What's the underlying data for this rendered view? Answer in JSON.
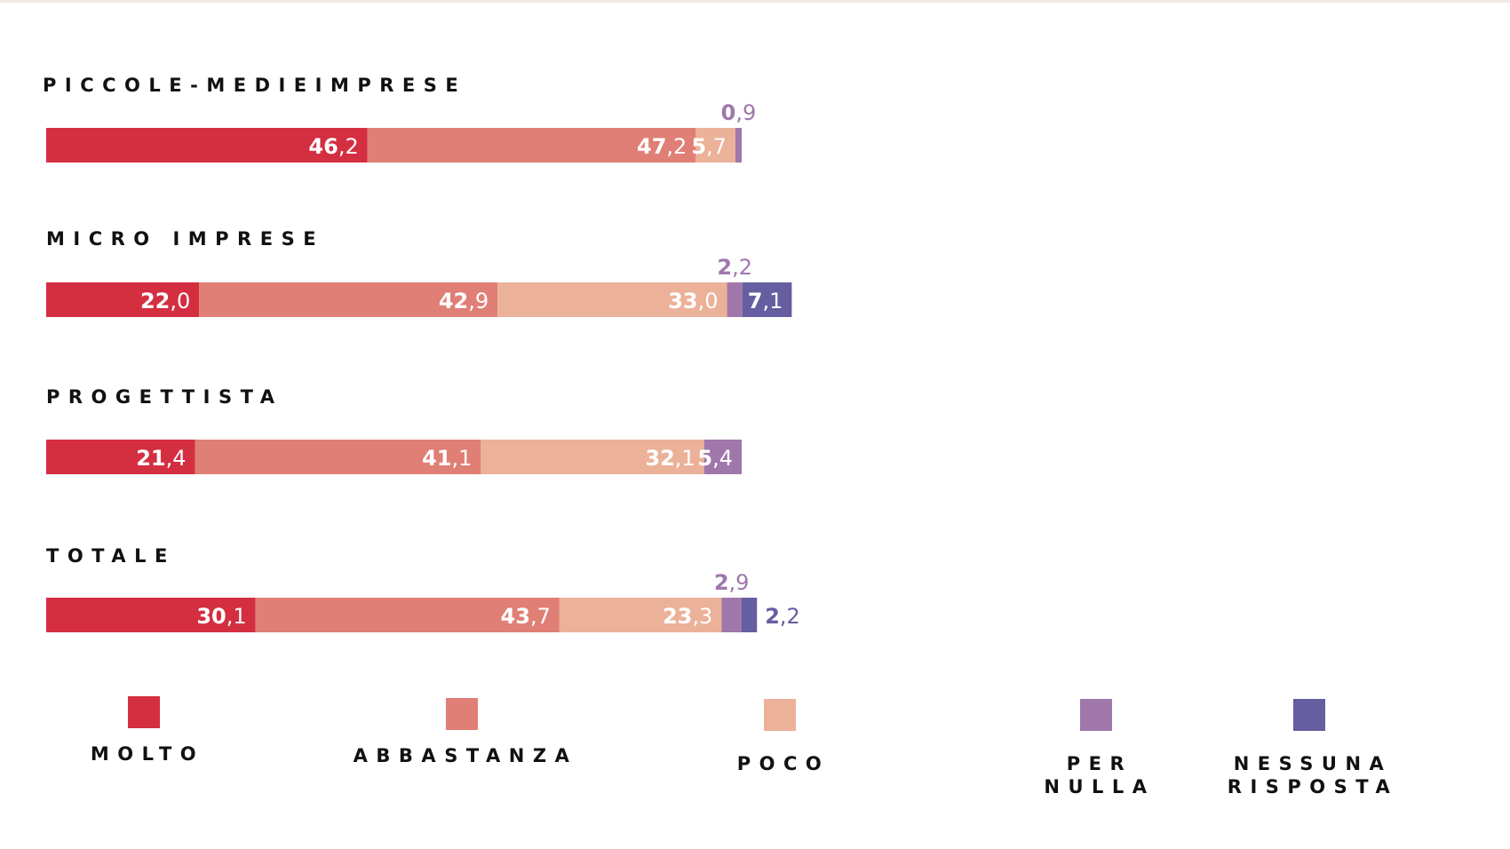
{
  "chart_data": {
    "type": "bar",
    "orientation": "horizontal-stacked",
    "categories": [
      "PICCOLE-MEDIEIMPRESE",
      "MICRO IMPRESE",
      "PROGETTISTA",
      "TOTALE"
    ],
    "series": [
      {
        "name": "MOLTO",
        "color": "#d42e41",
        "values": [
          46.2,
          22.0,
          21.4,
          30.1
        ]
      },
      {
        "name": "ABBASTANZA",
        "color": "#e07f75",
        "values": [
          47.2,
          42.9,
          41.1,
          43.7
        ]
      },
      {
        "name": "POCO",
        "color": "#ecb199",
        "values": [
          5.7,
          33.0,
          32.1,
          23.3
        ]
      },
      {
        "name": "PER NULLA",
        "color": "#9f77aa",
        "values": [
          0.9,
          2.2,
          5.4,
          2.9
        ]
      },
      {
        "name": "NESSUNA RISPOSTA",
        "color": "#655ea0",
        "values": [
          0,
          7.1,
          0,
          2.2
        ]
      }
    ],
    "value_labels": [
      [
        {
          "int": "46",
          "dec": ",2"
        },
        {
          "int": "47",
          "dec": ",2"
        },
        {
          "int": "5",
          "dec": ",7"
        },
        {
          "int": "0",
          "dec": ",9"
        },
        null
      ],
      [
        {
          "int": "22",
          "dec": ",0"
        },
        {
          "int": "42",
          "dec": ",9"
        },
        {
          "int": "33",
          "dec": ",0"
        },
        {
          "int": "2",
          "dec": ",2"
        },
        {
          "int": "7",
          "dec": ",1"
        }
      ],
      [
        {
          "int": "21",
          "dec": ",4"
        },
        {
          "int": "41",
          "dec": ",1"
        },
        {
          "int": "32",
          "dec": ",1"
        },
        {
          "int": "5",
          "dec": ",4"
        },
        null
      ],
      [
        {
          "int": "30",
          "dec": ",1"
        },
        {
          "int": "43",
          "dec": ",7"
        },
        {
          "int": "23",
          "dec": ",3"
        },
        {
          "int": "2",
          "dec": ",9"
        },
        {
          "int": "2",
          "dec": ",2"
        }
      ]
    ],
    "legend_lines": [
      [
        "MOLTO"
      ],
      [
        "ABBASTANZA"
      ],
      [
        "POCO"
      ],
      [
        "PER",
        "NULLA"
      ],
      [
        "NESSUNA",
        "RISPOSTA"
      ]
    ],
    "legend_position": "bottom",
    "grid": false
  }
}
